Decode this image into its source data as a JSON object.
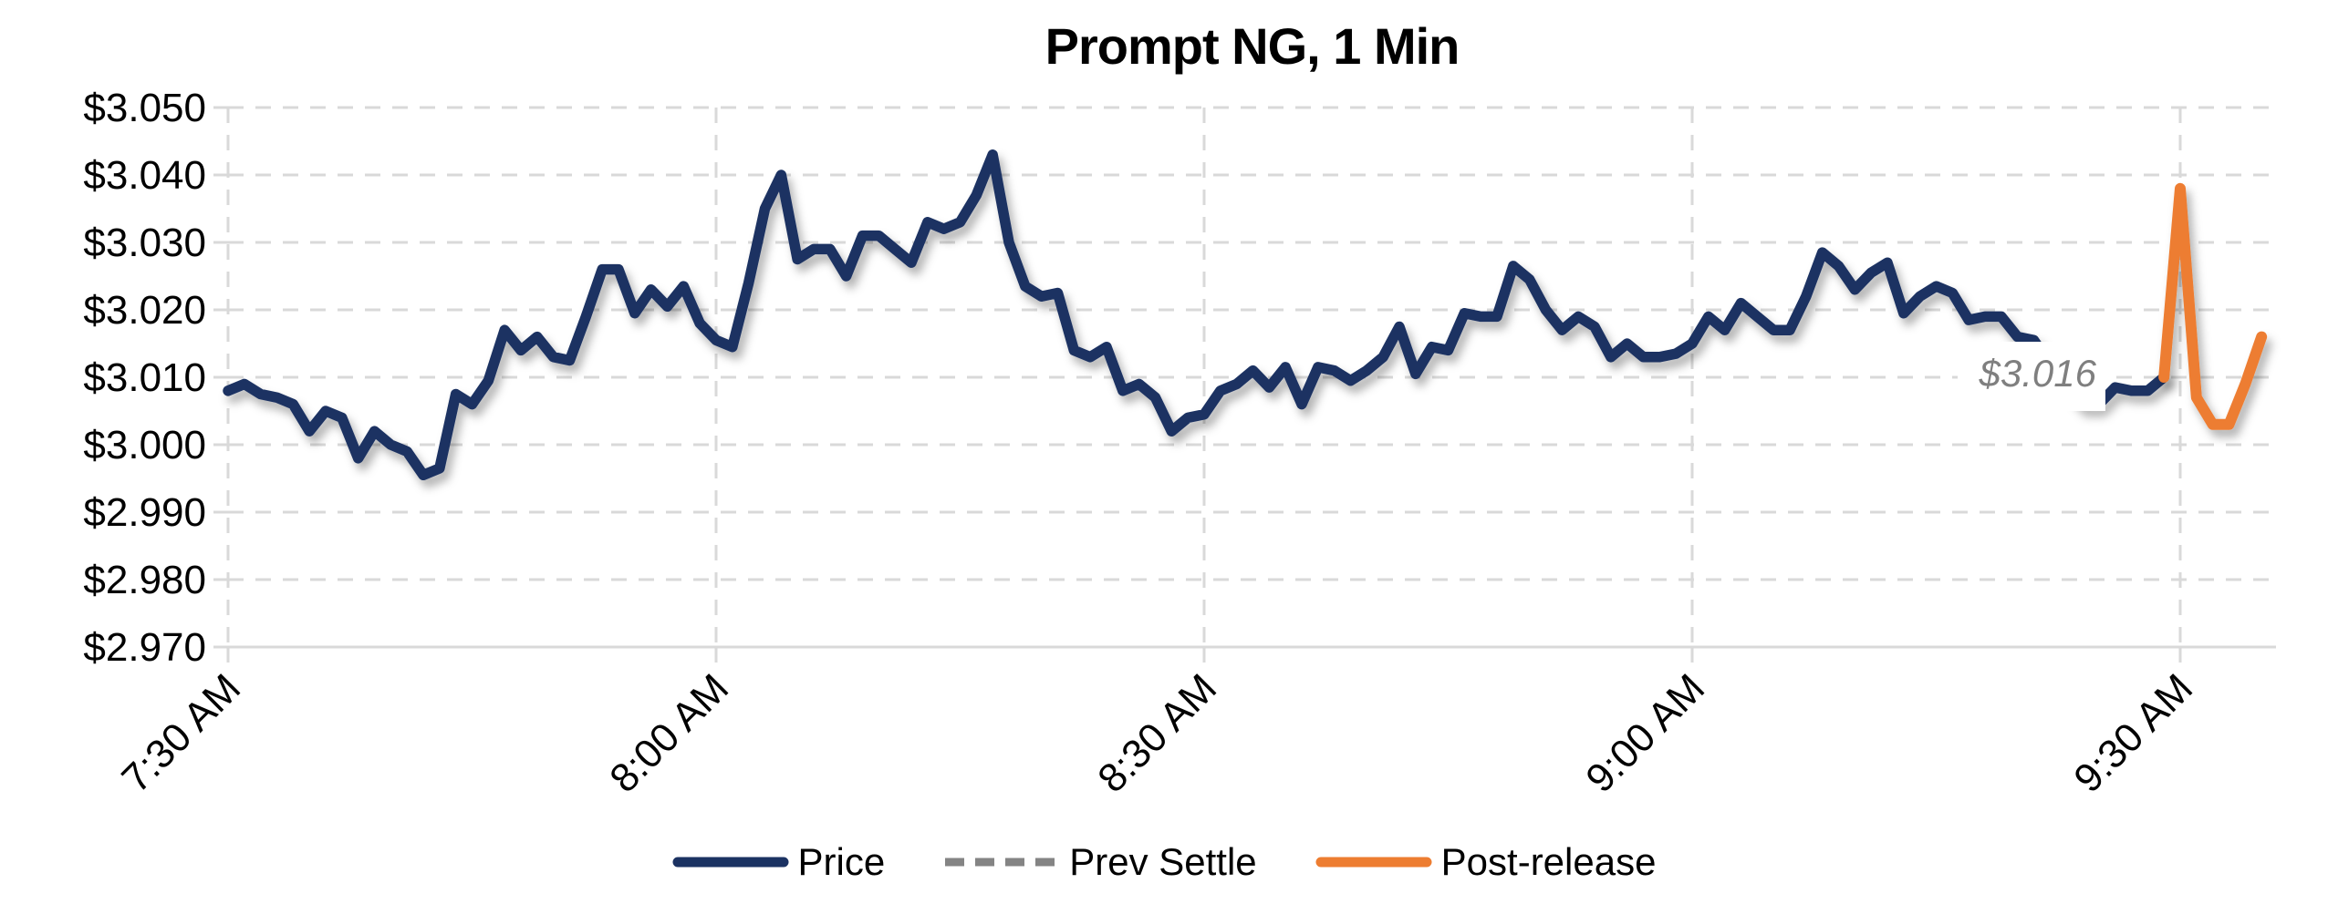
{
  "title": "Prompt NG, 1 Min",
  "annotation": {
    "text": "$3.016",
    "color": "#7f7f7f"
  },
  "colors": {
    "price": "#1b3262",
    "prev_settle": "#848484",
    "post_release": "#ed7d31",
    "gridline": "#d9d9d9",
    "axis_text": "#000000",
    "background": "#ffffff"
  },
  "chart_data": {
    "type": "line",
    "title": "Prompt NG, 1 Min",
    "xlabel": "",
    "ylabel": "",
    "grid": true,
    "legend_position": "bottom-center",
    "ylim": [
      2.97,
      3.05
    ],
    "y_ticks": [
      "$3.050",
      "$3.040",
      "$3.030",
      "$3.020",
      "$3.010",
      "$3.000",
      "$2.990",
      "$2.980",
      "$2.970"
    ],
    "x_ticks": [
      "7:30 AM",
      "8:00 AM",
      "8:30 AM",
      "9:00 AM",
      "9:30 AM"
    ],
    "x_start": "7:30 AM",
    "x_end": "9:35 AM",
    "interval_minutes": 1,
    "prev_settle": 3.016,
    "series": [
      {
        "name": "Price",
        "color": "#1b3262",
        "style": "solid",
        "points": [
          [
            "7:30",
            3.008
          ],
          [
            "7:31",
            3.009
          ],
          [
            "7:32",
            3.0075
          ],
          [
            "7:33",
            3.007
          ],
          [
            "7:34",
            3.006
          ],
          [
            "7:35",
            3.002
          ],
          [
            "7:36",
            3.005
          ],
          [
            "7:37",
            3.004
          ],
          [
            "7:38",
            2.998
          ],
          [
            "7:39",
            3.002
          ],
          [
            "7:40",
            3.0
          ],
          [
            "7:41",
            2.999
          ],
          [
            "7:42",
            2.9955
          ],
          [
            "7:43",
            2.9965
          ],
          [
            "7:44",
            3.0075
          ],
          [
            "7:45",
            3.006
          ],
          [
            "7:46",
            3.0095
          ],
          [
            "7:47",
            3.017
          ],
          [
            "7:48",
            3.014
          ],
          [
            "7:49",
            3.016
          ],
          [
            "7:50",
            3.013
          ],
          [
            "7:51",
            3.0125
          ],
          [
            "7:52",
            3.019
          ],
          [
            "7:53",
            3.026
          ],
          [
            "7:54",
            3.026
          ],
          [
            "7:55",
            3.0195
          ],
          [
            "7:56",
            3.023
          ],
          [
            "7:57",
            3.0205
          ],
          [
            "7:58",
            3.0235
          ],
          [
            "7:59",
            3.018
          ],
          [
            "8:00",
            3.0155
          ],
          [
            "8:01",
            3.0145
          ],
          [
            "8:02",
            3.024
          ],
          [
            "8:03",
            3.035
          ],
          [
            "8:04",
            3.04
          ],
          [
            "8:05",
            3.0275
          ],
          [
            "8:06",
            3.029
          ],
          [
            "8:07",
            3.029
          ],
          [
            "8:08",
            3.025
          ],
          [
            "8:09",
            3.031
          ],
          [
            "8:10",
            3.031
          ],
          [
            "8:11",
            3.029
          ],
          [
            "8:12",
            3.027
          ],
          [
            "8:13",
            3.033
          ],
          [
            "8:14",
            3.032
          ],
          [
            "8:15",
            3.033
          ],
          [
            "8:16",
            3.037
          ],
          [
            "8:17",
            3.043
          ],
          [
            "8:18",
            3.03
          ],
          [
            "8:19",
            3.0235
          ],
          [
            "8:20",
            3.022
          ],
          [
            "8:21",
            3.0225
          ],
          [
            "8:22",
            3.014
          ],
          [
            "8:23",
            3.013
          ],
          [
            "8:24",
            3.0145
          ],
          [
            "8:25",
            3.008
          ],
          [
            "8:26",
            3.009
          ],
          [
            "8:27",
            3.007
          ],
          [
            "8:28",
            3.002
          ],
          [
            "8:29",
            3.004
          ],
          [
            "8:30",
            3.0045
          ],
          [
            "8:31",
            3.008
          ],
          [
            "8:32",
            3.009
          ],
          [
            "8:33",
            3.011
          ],
          [
            "8:34",
            3.0085
          ],
          [
            "8:35",
            3.0115
          ],
          [
            "8:36",
            3.006
          ],
          [
            "8:37",
            3.0115
          ],
          [
            "8:38",
            3.011
          ],
          [
            "8:39",
            3.0095
          ],
          [
            "8:40",
            3.011
          ],
          [
            "8:41",
            3.013
          ],
          [
            "8:42",
            3.0175
          ],
          [
            "8:43",
            3.0105
          ],
          [
            "8:44",
            3.0145
          ],
          [
            "8:45",
            3.014
          ],
          [
            "8:46",
            3.0195
          ],
          [
            "8:47",
            3.019
          ],
          [
            "8:48",
            3.019
          ],
          [
            "8:49",
            3.0265
          ],
          [
            "8:50",
            3.0245
          ],
          [
            "8:51",
            3.02
          ],
          [
            "8:52",
            3.017
          ],
          [
            "8:53",
            3.019
          ],
          [
            "8:54",
            3.0175
          ],
          [
            "8:55",
            3.013
          ],
          [
            "8:56",
            3.015
          ],
          [
            "8:57",
            3.013
          ],
          [
            "8:58",
            3.013
          ],
          [
            "8:59",
            3.0135
          ],
          [
            "9:00",
            3.015
          ],
          [
            "9:01",
            3.019
          ],
          [
            "9:02",
            3.017
          ],
          [
            "9:03",
            3.021
          ],
          [
            "9:04",
            3.019
          ],
          [
            "9:05",
            3.017
          ],
          [
            "9:06",
            3.017
          ],
          [
            "9:07",
            3.022
          ],
          [
            "9:08",
            3.0285
          ],
          [
            "9:09",
            3.0265
          ],
          [
            "9:10",
            3.023
          ],
          [
            "9:11",
            3.0255
          ],
          [
            "9:12",
            3.027
          ],
          [
            "9:13",
            3.0195
          ],
          [
            "9:14",
            3.022
          ],
          [
            "9:15",
            3.0235
          ],
          [
            "9:16",
            3.0225
          ],
          [
            "9:17",
            3.0185
          ],
          [
            "9:18",
            3.019
          ],
          [
            "9:19",
            3.019
          ],
          [
            "9:20",
            3.016
          ],
          [
            "9:21",
            3.0155
          ],
          [
            "9:22",
            3.012
          ],
          [
            "9:23",
            3.009
          ],
          [
            "9:24",
            3.006
          ],
          [
            "9:25",
            3.006
          ],
          [
            "9:26",
            3.0085
          ],
          [
            "9:27",
            3.008
          ],
          [
            "9:28",
            3.008
          ],
          [
            "9:29",
            3.01
          ]
        ]
      },
      {
        "name": "Prev Settle",
        "color": "#848484",
        "style": "dashed",
        "value": 3.016
      },
      {
        "name": "Post-release",
        "color": "#ed7d31",
        "style": "solid",
        "points": [
          [
            "9:29",
            3.01
          ],
          [
            "9:30",
            3.038
          ],
          [
            "9:31",
            3.007
          ],
          [
            "9:32",
            3.003
          ],
          [
            "9:33",
            3.003
          ],
          [
            "9:34",
            3.009
          ],
          [
            "9:35",
            3.016
          ]
        ]
      }
    ]
  }
}
